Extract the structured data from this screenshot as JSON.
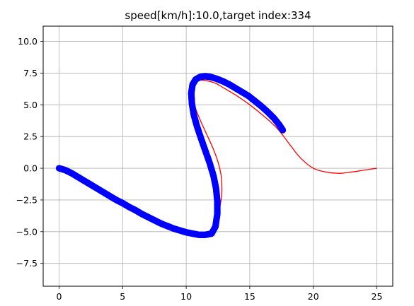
{
  "chart_data": {
    "type": "line",
    "title": "speed[km/h]:10.0,target index:334",
    "xlabel": "",
    "ylabel": "",
    "xlim": [
      -1.25,
      26.25
    ],
    "ylim": [
      -9.3,
      11.2
    ],
    "grid": true,
    "x_ticks": [
      "0",
      "5",
      "10",
      "15",
      "20",
      "25"
    ],
    "y_ticks": [
      "10.0",
      "7.5",
      "5.0",
      "2.5",
      "0.0",
      "−2.5",
      "−5.0",
      "−7.5"
    ],
    "x_tick_values": [
      0,
      5,
      10,
      15,
      20,
      25
    ],
    "y_tick_values": [
      10.0,
      7.5,
      5.0,
      2.5,
      0.0,
      -2.5,
      -5.0,
      -7.5
    ],
    "series": [
      {
        "color": "#ff0000",
        "style": "line",
        "x": [
          0,
          1,
          2,
          3,
          4,
          5,
          6,
          7,
          8,
          9,
          10,
          11,
          11.8,
          12.3,
          12.6,
          12.8,
          12.75,
          12.5,
          12.1,
          11.6,
          11.1,
          10.7,
          10.45,
          10.3,
          10.35,
          10.6,
          11.0,
          11.6,
          12.3,
          13.0,
          14.0,
          15.0,
          16.0,
          17.0,
          17.6,
          18.2,
          19.0,
          20.0,
          21.0,
          22.0,
          23.0,
          24.0,
          25.0
        ],
        "y": [
          0,
          -0.5,
          -1.1,
          -1.7,
          -2.3,
          -2.9,
          -3.4,
          -3.9,
          -4.35,
          -4.75,
          -5.05,
          -5.2,
          -5.05,
          -4.5,
          -3.3,
          -2.0,
          -0.6,
          0.5,
          1.6,
          2.7,
          3.8,
          4.8,
          5.6,
          6.3,
          6.75,
          6.9,
          6.95,
          6.9,
          6.7,
          6.3,
          5.7,
          5.0,
          4.2,
          3.3,
          2.6,
          1.8,
          0.8,
          0.0,
          -0.3,
          -0.4,
          -0.3,
          -0.15,
          0.0
        ]
      },
      {
        "color": "#0000ff",
        "style": "markers",
        "x": [
          0,
          0.5,
          1.0,
          1.5,
          2.0,
          2.5,
          3.0,
          3.5,
          4.0,
          4.5,
          5.0,
          5.5,
          6.0,
          6.5,
          7.0,
          7.5,
          8.0,
          8.5,
          9.0,
          9.5,
          10.0,
          10.5,
          11.0,
          11.5,
          12.0,
          12.3,
          12.45,
          12.45,
          12.35,
          12.15,
          11.85,
          11.5,
          11.15,
          10.85,
          10.6,
          10.45,
          10.4,
          10.5,
          10.75,
          11.1,
          11.5,
          11.9,
          12.4,
          12.9,
          13.4,
          13.9,
          14.4,
          14.9,
          15.4,
          15.9,
          16.4,
          16.9,
          17.3,
          17.6
        ],
        "y": [
          0,
          -0.15,
          -0.4,
          -0.7,
          -1.0,
          -1.3,
          -1.6,
          -1.9,
          -2.2,
          -2.5,
          -2.75,
          -3.05,
          -3.3,
          -3.6,
          -3.85,
          -4.1,
          -4.35,
          -4.55,
          -4.75,
          -4.9,
          -5.05,
          -5.15,
          -5.25,
          -5.25,
          -5.15,
          -4.6,
          -3.6,
          -2.6,
          -1.6,
          -0.6,
          0.4,
          1.4,
          2.4,
          3.3,
          4.2,
          5.1,
          5.9,
          6.6,
          7.0,
          7.2,
          7.25,
          7.2,
          7.05,
          6.85,
          6.6,
          6.3,
          6.0,
          5.7,
          5.3,
          4.9,
          4.45,
          3.95,
          3.45,
          3.0
        ]
      }
    ]
  }
}
